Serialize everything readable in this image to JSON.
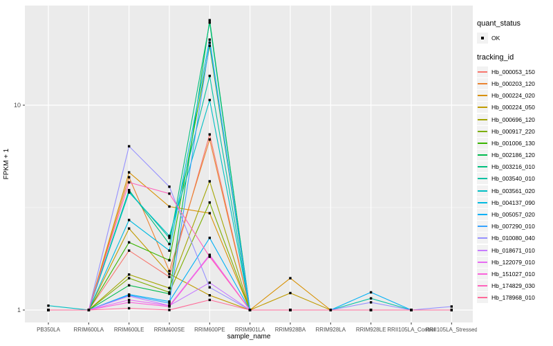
{
  "chart_data": {
    "type": "line",
    "title": "",
    "xlabel": "sample_name",
    "ylabel": "FPKM + 1",
    "y_scale": "log10",
    "y_tick_labels": [
      "1",
      "10"
    ],
    "y_ticks": [
      1,
      10
    ],
    "y_minor": [
      3.1623
    ],
    "ylim": [
      0.87,
      30.6
    ],
    "grid": "on",
    "legend_position": "right",
    "categories": [
      "PB350LA",
      "RRIM600LA",
      "RRIM600LE",
      "RRIM600SE",
      "RRIM600PE",
      "RRIM901LA",
      "RRIM928BA",
      "RRIM928LA",
      "RRIM928LE",
      "RRII105LA_Control",
      "RRII105LA_Stressed"
    ],
    "series": [
      {
        "name": "Hb_000053_150",
        "color": "#F8766D",
        "values": [
          1,
          1,
          1.95,
          1.45,
          7.2,
          1,
          1,
          1,
          1,
          1,
          1
        ]
      },
      {
        "name": "Hb_000203_120",
        "color": "#EA8331",
        "values": [
          1,
          1,
          4.45,
          1.55,
          6.8,
          1,
          1,
          1,
          1,
          1,
          1
        ]
      },
      {
        "name": "Hb_000224_020",
        "color": "#D89000",
        "values": [
          1,
          1,
          4.7,
          3.2,
          2.97,
          1,
          1.43,
          1,
          1,
          1,
          1
        ]
      },
      {
        "name": "Hb_000224_050",
        "color": "#C09B00",
        "values": [
          1,
          1,
          2.5,
          1.5,
          1.18,
          1,
          1.21,
          1,
          1,
          1,
          1
        ]
      },
      {
        "name": "Hb_000696_120",
        "color": "#A3A500",
        "values": [
          1,
          1,
          1.49,
          1.28,
          4.25,
          1,
          1,
          1,
          1,
          1,
          1
        ]
      },
      {
        "name": "Hb_000917_220",
        "color": "#7CAE00",
        "values": [
          1,
          1,
          1.43,
          1.22,
          3.35,
          1,
          1,
          1,
          1,
          1,
          1
        ]
      },
      {
        "name": "Hb_001006_130",
        "color": "#39B600",
        "values": [
          1,
          1,
          2.14,
          1.75,
          19.5,
          1,
          1,
          1,
          1,
          1,
          1
        ]
      },
      {
        "name": "Hb_002186_120",
        "color": "#00BB4E",
        "values": [
          1,
          1,
          1.32,
          1.2,
          26.0,
          1,
          1,
          1,
          1,
          1,
          1
        ]
      },
      {
        "name": "Hb_003216_010",
        "color": "#00BF7D",
        "values": [
          1,
          1,
          3.85,
          2.1,
          25.3,
          1,
          1,
          1,
          1,
          1,
          1
        ]
      },
      {
        "name": "Hb_003540_010",
        "color": "#00C1A3",
        "values": [
          1,
          1,
          3.8,
          2.25,
          13.9,
          1,
          1,
          1,
          1.14,
          1,
          1
        ]
      },
      {
        "name": "Hb_003561_020",
        "color": "#00BFC4",
        "values": [
          1.05,
          1,
          3.75,
          2.3,
          10.6,
          1,
          1,
          1,
          1,
          1,
          1
        ]
      },
      {
        "name": "Hb_004137_090",
        "color": "#00BAE0",
        "values": [
          1,
          1,
          2.75,
          1.95,
          20.9,
          1,
          1,
          1,
          1,
          1,
          1
        ]
      },
      {
        "name": "Hb_005057_020",
        "color": "#00B0F6",
        "values": [
          1,
          1,
          1.19,
          1.1,
          2.25,
          1,
          1,
          1,
          1.22,
          1,
          1
        ]
      },
      {
        "name": "Hb_007290_010",
        "color": "#35A2FF",
        "values": [
          1,
          1,
          1.18,
          1.08,
          20.2,
          1,
          1,
          1,
          1,
          1,
          1
        ]
      },
      {
        "name": "Hb_010080_040",
        "color": "#9590FF",
        "values": [
          1,
          1,
          6.3,
          4.0,
          1.29,
          1,
          1,
          1,
          1.09,
          1,
          1.04
        ]
      },
      {
        "name": "Hb_018671_010",
        "color": "#C77CFF",
        "values": [
          1,
          1,
          1.17,
          1.05,
          1.36,
          1,
          1,
          1,
          1,
          1,
          1
        ]
      },
      {
        "name": "Hb_122079_010",
        "color": "#E76BF3",
        "values": [
          1,
          1,
          1.12,
          1.05,
          1.86,
          1,
          1,
          1,
          1,
          1,
          1
        ]
      },
      {
        "name": "Hb_151027_010",
        "color": "#FA62DB",
        "values": [
          1,
          1,
          1.09,
          1.04,
          1.84,
          1,
          1,
          1,
          1,
          1,
          1
        ]
      },
      {
        "name": "Hb_174829_030",
        "color": "#FF62BC",
        "values": [
          1,
          1,
          4.2,
          3.7,
          1.82,
          1,
          1,
          1,
          1,
          1,
          1
        ]
      },
      {
        "name": "Hb_178968_010",
        "color": "#FF6A98",
        "values": [
          1,
          1,
          1.02,
          1.0,
          1.12,
          1,
          1,
          1,
          1,
          1,
          1
        ]
      }
    ]
  },
  "legend": {
    "quant_status_title": "quant_status",
    "quant_status_items": [
      {
        "label": "OK",
        "marker": "black-point"
      }
    ],
    "tracking_id_title": "tracking_id"
  },
  "colors": {
    "panel_bg": "#EBEBEB",
    "grid": "#FFFFFF",
    "key_bg": "#F2F2F2",
    "tick_text": "#4D4D4D",
    "axis_text": "#000000",
    "marker": "#000000"
  }
}
